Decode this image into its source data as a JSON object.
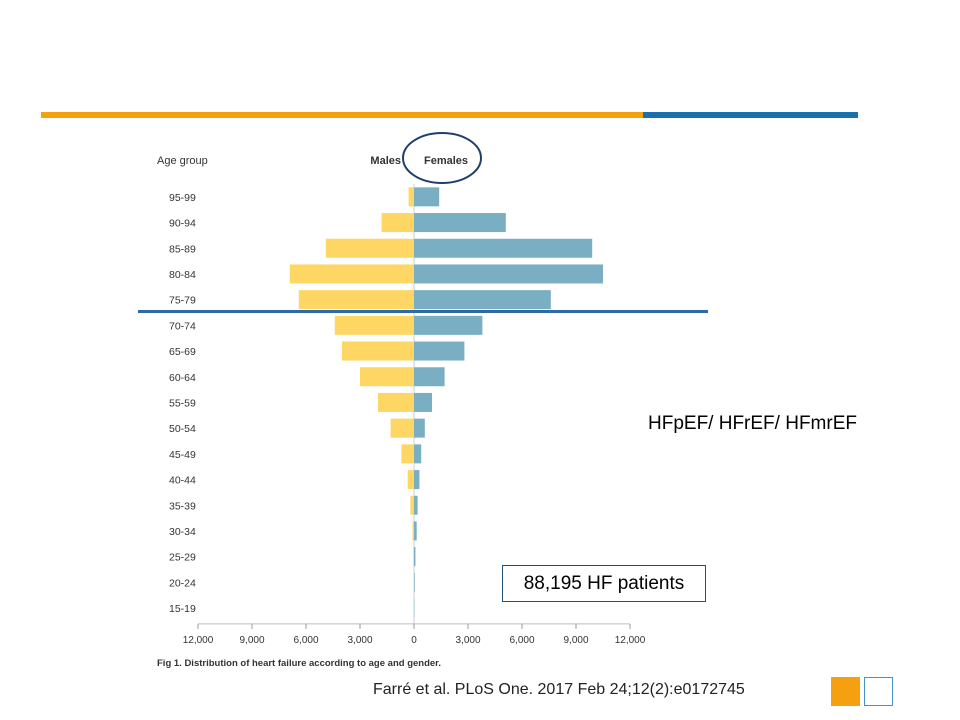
{
  "chart_data": {
    "type": "bar",
    "orientation": "horizontal-pyramid",
    "categories": [
      "95-99",
      "90-94",
      "85-89",
      "80-84",
      "75-79",
      "70-74",
      "65-69",
      "60-64",
      "55-59",
      "50-54",
      "45-49",
      "40-44",
      "35-39",
      "30-34",
      "25-29",
      "20-24",
      "15-19"
    ],
    "series": [
      {
        "name": "Males",
        "values": [
          300,
          1800,
          4900,
          6900,
          6400,
          4400,
          4000,
          3000,
          2000,
          1300,
          700,
          350,
          200,
          80,
          40,
          20,
          10
        ],
        "color": "#fdd663"
      },
      {
        "name": "Females",
        "values": [
          1400,
          5100,
          9900,
          10500,
          7600,
          3800,
          2800,
          1700,
          1000,
          600,
          400,
          300,
          200,
          150,
          80,
          40,
          20
        ],
        "color": "#7aafc3"
      }
    ],
    "ylabel": "Age group",
    "xlim": [
      -12000,
      12000
    ],
    "x_ticks": [
      "12,000",
      "9,000",
      "6,000",
      "3,000",
      "0",
      "3,000",
      "6,000",
      "9,000",
      "12,000"
    ],
    "caption": "Fig 1. Distribution of heart failure according to age and gender.",
    "legend_position": "top-center",
    "highlight_threshold_between": [
      "75-79",
      "70-74"
    ],
    "circled_legend": "Females"
  },
  "annotations": {
    "side_label": "HFpEF/ HFrEF/ HFmrEF",
    "patients": "88,195 HF patients",
    "citation": "Farré et al. PLoS One. 2017 Feb 24;12(2):e0172745"
  },
  "colors": {
    "accent_orange": "#f5a00f",
    "accent_blue": "#1a6fae",
    "line_blue": "#2e6aa8",
    "circle": "#1f3f6b"
  }
}
